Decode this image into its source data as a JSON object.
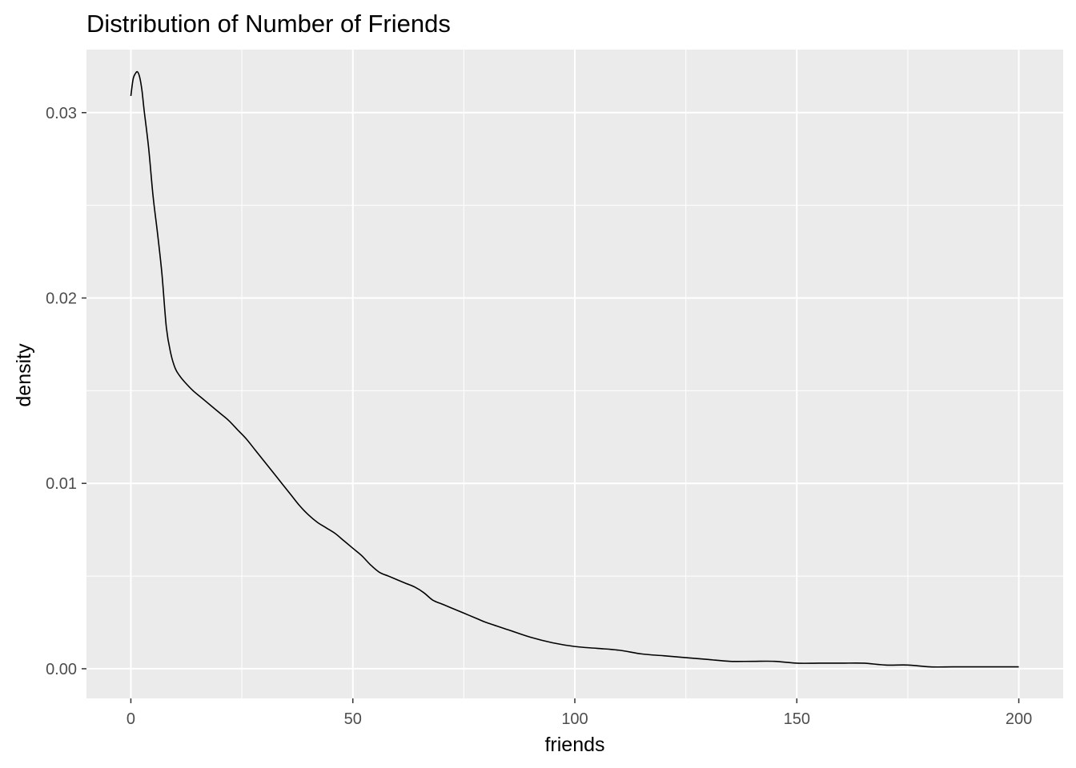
{
  "chart_data": {
    "type": "line",
    "title": "Distribution of Number of Friends",
    "xlabel": "friends",
    "ylabel": "density",
    "xlim": [
      -10,
      210
    ],
    "ylim": [
      -0.0016,
      0.0334
    ],
    "x_ticks": [
      0,
      50,
      100,
      150,
      200
    ],
    "x_tick_labels": [
      "0",
      "50",
      "100",
      "150",
      "200"
    ],
    "y_ticks": [
      0,
      0.01,
      0.02,
      0.03
    ],
    "y_tick_labels": [
      "0.00",
      "0.01",
      "0.02",
      "0.03"
    ],
    "grid": true,
    "legend": "none",
    "colors": {
      "panel": "#ebebeb",
      "grid": "#ffffff",
      "line": "#000000"
    },
    "series": [
      {
        "x": [
          0,
          0.5,
          1,
          1.5,
          2,
          2.5,
          3,
          4,
          5,
          6,
          7,
          8,
          9,
          10,
          11,
          12,
          14,
          16,
          18,
          20,
          22,
          24,
          26,
          28,
          30,
          32,
          34,
          36,
          38,
          40,
          42,
          44,
          46,
          48,
          50,
          52,
          54,
          56,
          58,
          60,
          62,
          64,
          66,
          68,
          70,
          72,
          75,
          78,
          80,
          85,
          90,
          95,
          100,
          105,
          110,
          115,
          120,
          125,
          130,
          135,
          140,
          145,
          150,
          155,
          160,
          165,
          170,
          175,
          180,
          185,
          190,
          195,
          200
        ],
        "y": [
          0.0309,
          0.0318,
          0.0321,
          0.0322,
          0.0319,
          0.0312,
          0.0301,
          0.0281,
          0.0255,
          0.0235,
          0.0213,
          0.0184,
          0.017,
          0.0162,
          0.0158,
          0.0155,
          0.015,
          0.0146,
          0.0142,
          0.0138,
          0.0134,
          0.0129,
          0.0124,
          0.0118,
          0.0112,
          0.0106,
          0.01,
          0.0094,
          0.0088,
          0.0083,
          0.0079,
          0.0076,
          0.0073,
          0.0069,
          0.0065,
          0.0061,
          0.0056,
          0.0052,
          0.005,
          0.0048,
          0.0046,
          0.0044,
          0.0041,
          0.0037,
          0.0035,
          0.0033,
          0.003,
          0.0027,
          0.0025,
          0.0021,
          0.0017,
          0.0014,
          0.0012,
          0.0011,
          0.001,
          0.0008,
          0.0007,
          0.0006,
          0.0005,
          0.0004,
          0.0004,
          0.0004,
          0.0003,
          0.0003,
          0.0003,
          0.0003,
          0.0002,
          0.0002,
          0.0001,
          0.0001,
          0.0001,
          0.0001,
          0.0001
        ]
      }
    ]
  }
}
